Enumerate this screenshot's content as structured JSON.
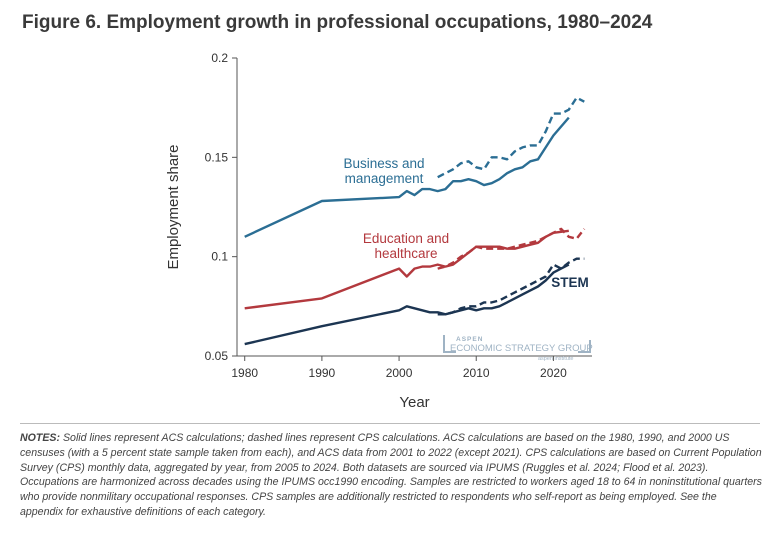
{
  "title": "Figure 6. Employment growth in professional occupations, 1980–2024",
  "notes": {
    "label": "NOTES:",
    "text": "Solid lines represent ACS calculations; dashed lines represent CPS calculations. ACS calculations are based on the 1980, 1990, and 2000 US censuses (with a 5 percent state sample taken from each), and ACS data from 2001 to 2022 (except 2021). CPS calculations are based on Current Population Survey (CPS) monthly data, aggregated by year, from 2005 to 2024. Both datasets are sourced via IPUMS (Ruggles et al. 2024; Flood et al. 2023). Occupations are harmonized across decades using the IPUMS occ1990 encoding. Samples are restricted to workers aged 18 to 64 in noninstitutional quarters who provide nonmilitary occupational responses. CPS samples are additionally restricted to respondents who self-report as being employed. See the appendix for exhaustive definitions of each category."
  },
  "watermark": {
    "line1": "ASPEN",
    "line2": "ECONOMIC STRATEGY GROUP",
    "line3": "aspen institute"
  },
  "colors": {
    "business": "#2b6e94",
    "education": "#b3393e",
    "stem": "#1c3552",
    "axis": "#555555",
    "watermark": "#9fb3c4"
  },
  "chart_data": {
    "type": "line",
    "xlabel": "Year",
    "ylabel": "Employment share",
    "xlim": [
      1979,
      2025
    ],
    "ylim": [
      0.05,
      0.2
    ],
    "xticks": [
      1980,
      1990,
      2000,
      2010,
      2020
    ],
    "yticks": [
      0.05,
      0.1,
      0.15,
      0.2
    ],
    "ytick_labels": [
      "0.05",
      "0.1",
      "0.15",
      "0.2"
    ],
    "grid": false,
    "legend": "direct labels",
    "series": [
      {
        "name": "Business and management",
        "label_lines": [
          "Business and",
          "management"
        ],
        "color_key": "business",
        "acs": {
          "x": [
            1980,
            1990,
            2000,
            2001,
            2002,
            2003,
            2004,
            2005,
            2006,
            2007,
            2008,
            2009,
            2010,
            2011,
            2012,
            2013,
            2014,
            2015,
            2016,
            2017,
            2018,
            2019,
            2020,
            2022
          ],
          "y": [
            0.11,
            0.128,
            0.13,
            0.133,
            0.131,
            0.134,
            0.134,
            0.133,
            0.134,
            0.138,
            0.138,
            0.139,
            0.138,
            0.136,
            0.137,
            0.139,
            0.142,
            0.144,
            0.145,
            0.148,
            0.149,
            0.155,
            0.161,
            0.17
          ]
        },
        "cps": {
          "x": [
            2005,
            2006,
            2007,
            2008,
            2009,
            2010,
            2011,
            2012,
            2013,
            2014,
            2015,
            2016,
            2017,
            2018,
            2019,
            2020,
            2021,
            2022,
            2023,
            2024
          ],
          "y": [
            0.14,
            0.142,
            0.144,
            0.147,
            0.148,
            0.145,
            0.144,
            0.15,
            0.15,
            0.149,
            0.153,
            0.155,
            0.156,
            0.156,
            0.163,
            0.172,
            0.172,
            0.174,
            0.18,
            0.178
          ]
        }
      },
      {
        "name": "Education and healthcare",
        "label_lines": [
          "Education and",
          "healthcare"
        ],
        "color_key": "education",
        "acs": {
          "x": [
            1980,
            1990,
            2000,
            2001,
            2002,
            2003,
            2004,
            2005,
            2006,
            2007,
            2008,
            2009,
            2010,
            2011,
            2012,
            2013,
            2014,
            2015,
            2016,
            2017,
            2018,
            2019,
            2020,
            2022
          ],
          "y": [
            0.074,
            0.079,
            0.094,
            0.09,
            0.094,
            0.095,
            0.095,
            0.096,
            0.095,
            0.096,
            0.099,
            0.102,
            0.105,
            0.105,
            0.105,
            0.105,
            0.104,
            0.104,
            0.105,
            0.106,
            0.107,
            0.11,
            0.112,
            0.113
          ]
        },
        "cps": {
          "x": [
            2005,
            2006,
            2007,
            2008,
            2009,
            2010,
            2011,
            2012,
            2013,
            2014,
            2015,
            2016,
            2017,
            2018,
            2019,
            2020,
            2021,
            2022,
            2023,
            2024
          ],
          "y": [
            0.094,
            0.095,
            0.097,
            0.1,
            0.102,
            0.105,
            0.104,
            0.104,
            0.104,
            0.104,
            0.105,
            0.106,
            0.107,
            0.108,
            0.11,
            0.112,
            0.114,
            0.11,
            0.109,
            0.114
          ]
        }
      },
      {
        "name": "STEM",
        "label_lines": [
          "STEM"
        ],
        "color_key": "stem",
        "acs": {
          "x": [
            1980,
            1990,
            2000,
            2001,
            2002,
            2003,
            2004,
            2005,
            2006,
            2007,
            2008,
            2009,
            2010,
            2011,
            2012,
            2013,
            2014,
            2015,
            2016,
            2017,
            2018,
            2019,
            2020,
            2022
          ],
          "y": [
            0.056,
            0.065,
            0.073,
            0.075,
            0.074,
            0.073,
            0.072,
            0.072,
            0.071,
            0.072,
            0.073,
            0.074,
            0.073,
            0.074,
            0.074,
            0.075,
            0.077,
            0.079,
            0.081,
            0.083,
            0.085,
            0.088,
            0.092,
            0.096
          ]
        },
        "cps": {
          "x": [
            2005,
            2006,
            2007,
            2008,
            2009,
            2010,
            2011,
            2012,
            2013,
            2014,
            2015,
            2016,
            2017,
            2018,
            2019,
            2020,
            2021,
            2022,
            2023,
            2024
          ],
          "y": [
            0.071,
            0.071,
            0.072,
            0.074,
            0.075,
            0.075,
            0.077,
            0.077,
            0.078,
            0.08,
            0.082,
            0.084,
            0.086,
            0.088,
            0.09,
            0.096,
            0.094,
            0.097,
            0.099,
            0.099
          ]
        }
      }
    ]
  }
}
